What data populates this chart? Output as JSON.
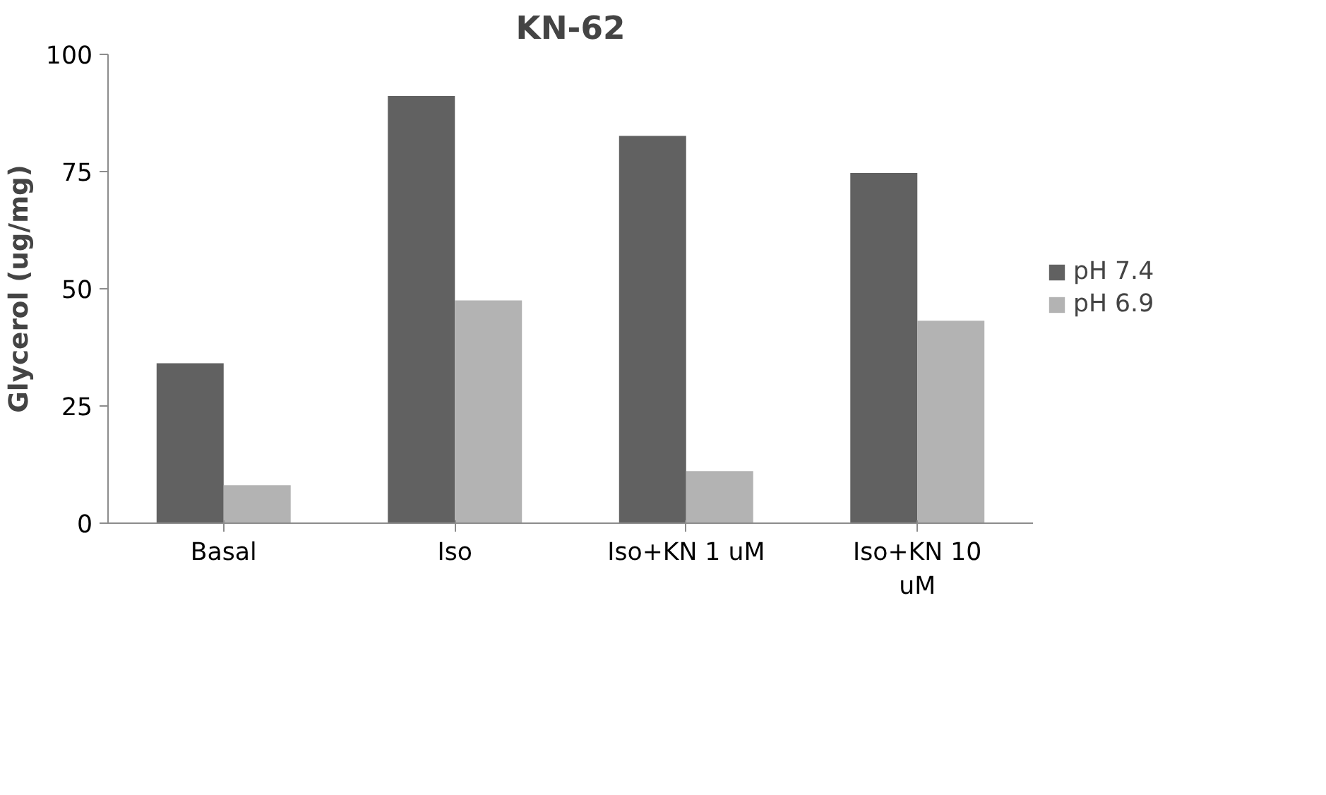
{
  "chart_data": {
    "type": "bar",
    "title": "KN-62",
    "ylabel": "Glycerol (ug/mg)",
    "categories": [
      "Basal",
      "Iso",
      "Iso+KN 1 uM",
      "Iso+KN 10 uM"
    ],
    "series": [
      {
        "name": "pH 7.4",
        "color": "#616161",
        "values": [
          34.1,
          91.1,
          82.6,
          74.7
        ]
      },
      {
        "name": "pH 6.9",
        "color": "#b3b3b3",
        "values": [
          8.1,
          47.5,
          11.1,
          43.2
        ]
      }
    ],
    "ylim": [
      0,
      100
    ],
    "yticks": [
      0,
      25,
      50,
      75,
      100
    ],
    "grid": false,
    "legend": "right"
  }
}
